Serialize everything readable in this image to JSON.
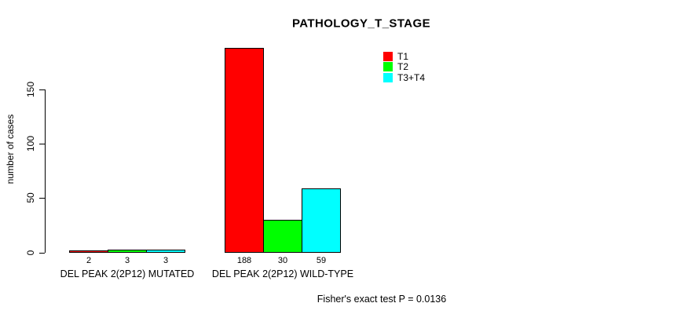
{
  "title": "PATHOLOGY_T_STAGE",
  "y_axis": {
    "label": "number of cases",
    "ticks": [
      0,
      50,
      100,
      150
    ]
  },
  "footnote": "Fisher's exact test P = 0.0136",
  "chart_data": {
    "type": "bar",
    "title": "PATHOLOGY_T_STAGE",
    "categories": [
      "DEL PEAK 2(2P12) MUTATED",
      "DEL PEAK 2(2P12) WILD-TYPE"
    ],
    "series": [
      {
        "name": "T1",
        "color": "#FF0000",
        "values": [
          2,
          188
        ]
      },
      {
        "name": "T2",
        "color": "#00FF00",
        "values": [
          3,
          30
        ]
      },
      {
        "name": "T3+T4",
        "color": "#00FFFF",
        "values": [
          3,
          59
        ]
      }
    ],
    "ylabel": "number of cases",
    "yticks": [
      0,
      50,
      100,
      150
    ],
    "ylim": [
      0,
      195
    ],
    "bar_value_labels": [
      [
        2,
        3,
        3
      ],
      [
        188,
        30,
        59
      ]
    ],
    "legend_position": "top-right",
    "grid": false,
    "annotation": "Fisher's exact test P = 0.0136"
  }
}
